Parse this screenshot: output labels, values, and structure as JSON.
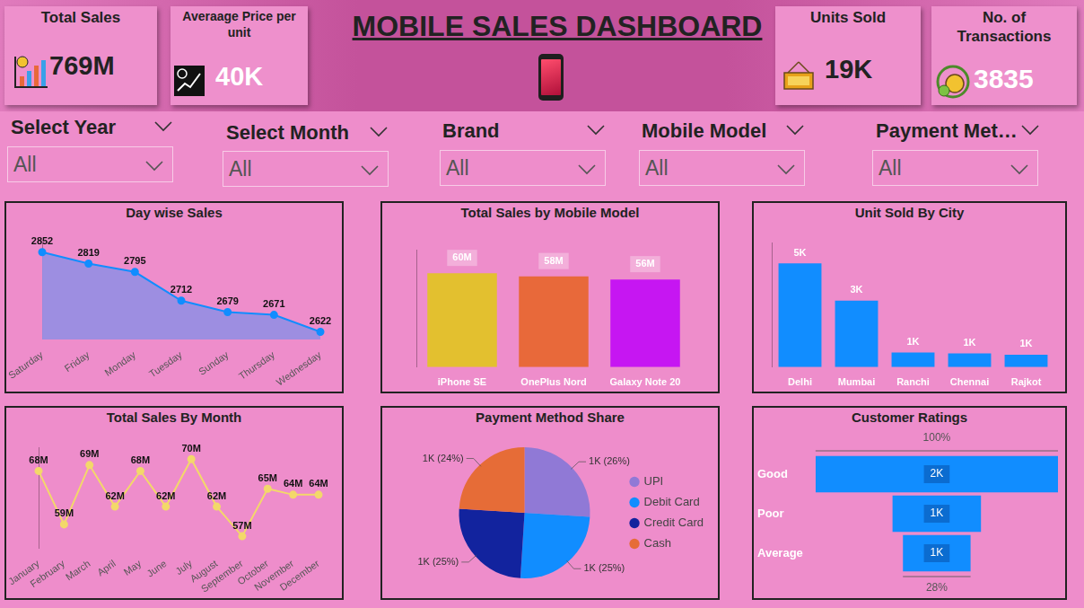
{
  "title": "MOBILE SALES DASHBOARD",
  "kpis": [
    {
      "label": "Total Sales",
      "value": "769M"
    },
    {
      "label": "Averaage Price per unit",
      "value": "40K"
    },
    {
      "label": "Units Sold",
      "value": "19K"
    },
    {
      "label": "No. of Transactions",
      "value": "3835"
    }
  ],
  "filters": [
    {
      "label": "Select Year",
      "value": "All"
    },
    {
      "label": "Select Month",
      "value": "All"
    },
    {
      "label": "Brand",
      "value": "All"
    },
    {
      "label": "Mobile Model",
      "value": "All"
    },
    {
      "label": "Payment Met…",
      "value": "All"
    }
  ],
  "chart_data": [
    {
      "type": "area",
      "title": "Day wise Sales",
      "categories": [
        "Saturday",
        "Friday",
        "Monday",
        "Tuesday",
        "Sunday",
        "Thursday",
        "Wednesday"
      ],
      "values": [
        2852,
        2819,
        2795,
        2712,
        2679,
        2671,
        2622
      ],
      "color": "#118dff",
      "marker": "circle",
      "ylim": [
        2600,
        2880
      ],
      "data_labels": true,
      "tick_labels": "x",
      "grid": false
    },
    {
      "type": "bar",
      "title": "Total Sales by Mobile Model",
      "categories": [
        "iPhone SE",
        "OnePlus Nord",
        "Galaxy Note 20"
      ],
      "values": [
        60,
        58,
        56
      ],
      "value_labels": [
        "60M",
        "58M",
        "56M"
      ],
      "colors": [
        "#e3c02f",
        "#e8693a",
        "#c616f2"
      ],
      "ylim": [
        0,
        75
      ],
      "data_labels": true,
      "tick_labels": "x",
      "grid": false
    },
    {
      "type": "bar",
      "title": "Unit Sold By City",
      "categories": [
        "Delhi",
        "Mumbai",
        "Ranchi",
        "Chennai",
        "Rajkot"
      ],
      "values": [
        5,
        3.2,
        0.7,
        0.66,
        0.6
      ],
      "value_labels": [
        "5K",
        "3K",
        "1K",
        "1K",
        "1K"
      ],
      "color": "#118dff",
      "ylim": [
        0,
        6
      ],
      "data_labels": true,
      "tick_labels": "x",
      "grid": false
    },
    {
      "type": "line",
      "title": "Total Sales By Month",
      "categories": [
        "January",
        "February",
        "March",
        "April",
        "May",
        "June",
        "July",
        "August",
        "September",
        "October",
        "November",
        "December"
      ],
      "values": [
        68,
        59,
        69,
        62,
        68,
        62,
        70,
        62,
        57,
        65,
        64,
        64
      ],
      "value_labels": [
        "68M",
        "59M",
        "69M",
        "62M",
        "68M",
        "62M",
        "70M",
        "62M",
        "57M",
        "65M",
        "64M",
        "64M"
      ],
      "color": "#f3d86a",
      "marker": "circle",
      "ylim": [
        55,
        72
      ],
      "data_labels": true,
      "tick_labels": "x",
      "grid": false
    },
    {
      "type": "pie",
      "title": "Payment Method Share",
      "categories": [
        "UPI",
        "Debit Card",
        "Credit Card",
        "Cash"
      ],
      "values": [
        26,
        25,
        25,
        24
      ],
      "value_labels": [
        "1K (26%)",
        "1K (25%)",
        "1K (25%)",
        "1K (24%)"
      ],
      "colors": [
        "#9079d6",
        "#118dff",
        "#12239e",
        "#e66c37"
      ],
      "legend": "right",
      "data_labels": true
    },
    {
      "type": "funnel",
      "title": "Customer Ratings",
      "categories": [
        "Good",
        "Poor",
        "Average"
      ],
      "values": [
        2.33,
        0.85,
        0.65
      ],
      "value_labels": [
        "2K",
        "1K",
        "1K"
      ],
      "color": "#118dff",
      "orientation": "horizontal",
      "annotations": [
        "100%",
        "28%"
      ],
      "data_labels": true,
      "tick_labels": "y"
    }
  ]
}
